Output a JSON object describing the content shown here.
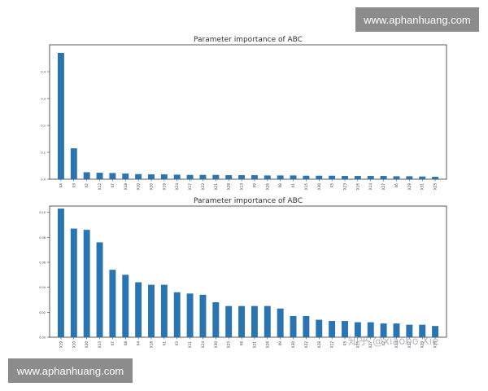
{
  "watermarks": {
    "top": "www.aphanhuang.com",
    "bottom": "www.aphanhuang.com",
    "zhihu": "知乎 @xiaobo Xie"
  },
  "colors": {
    "bar": "#2a75b1",
    "axis": "#333333",
    "text": "#333333"
  },
  "chart_data": [
    {
      "type": "bar",
      "title": "Parameter importance of ABC",
      "categories": [
        "X4",
        "X3",
        "X2",
        "X12",
        "X7",
        "X18",
        "X10",
        "X20",
        "X19",
        "X24",
        "X17",
        "X22",
        "X21",
        "X28",
        "X13",
        "X9",
        "X26",
        "X8",
        "X1",
        "X15",
        "X30",
        "X5",
        "X23",
        "X16",
        "X14",
        "X27",
        "X6",
        "X29",
        "X31",
        "X25"
      ],
      "values": [
        0.47,
        0.115,
        0.026,
        0.024,
        0.023,
        0.021,
        0.019,
        0.018,
        0.018,
        0.017,
        0.016,
        0.016,
        0.016,
        0.015,
        0.015,
        0.015,
        0.014,
        0.014,
        0.014,
        0.013,
        0.013,
        0.013,
        0.012,
        0.012,
        0.012,
        0.012,
        0.011,
        0.011,
        0.01,
        0.009
      ],
      "ylim": [
        0,
        0.5
      ],
      "yticks": [
        "0.0",
        "0.1",
        "0.2",
        "0.3",
        "0.4"
      ],
      "grid": false
    },
    {
      "type": "bar",
      "title": "Parameter importance of ABC",
      "categories": [
        "X19",
        "X10",
        "X20",
        "X13",
        "X7",
        "X8",
        "X4",
        "X18",
        "X1",
        "X3",
        "X11",
        "X24",
        "X30",
        "X25",
        "X6",
        "X21",
        "X26",
        "X9",
        "X30",
        "X22",
        "X28",
        "X12",
        "X5",
        "X15",
        "X27",
        "X2",
        "X14",
        "X17",
        "X29",
        "X16"
      ],
      "values": [
        0.103,
        0.087,
        0.086,
        0.076,
        0.054,
        0.05,
        0.044,
        0.042,
        0.042,
        0.036,
        0.035,
        0.034,
        0.028,
        0.025,
        0.025,
        0.025,
        0.025,
        0.023,
        0.017,
        0.017,
        0.014,
        0.013,
        0.013,
        0.012,
        0.012,
        0.011,
        0.011,
        0.01,
        0.01,
        0.009
      ],
      "ylim": [
        0,
        0.105
      ],
      "yticks": [
        "0.00",
        "0.02",
        "0.04",
        "0.06",
        "0.08",
        "0.10"
      ],
      "grid": false
    }
  ]
}
